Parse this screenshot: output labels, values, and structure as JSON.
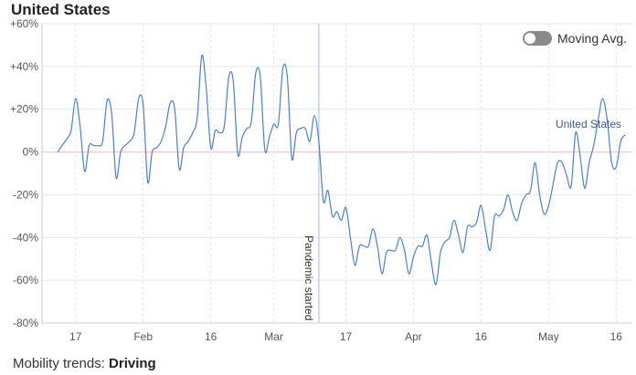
{
  "title": "United States",
  "toggle": {
    "label": "Moving Avg.",
    "on": false
  },
  "footer": {
    "prefix": "Mobility trends: ",
    "mode": "Driving"
  },
  "chart_data": {
    "type": "line",
    "title": "United States",
    "xlabel": "",
    "ylabel": "",
    "ylim": [
      -80,
      60
    ],
    "y_ticks": [
      "+60%",
      "+40%",
      "+20%",
      "0%",
      "-20%",
      "-40%",
      "-60%",
      "-80%"
    ],
    "x_tick_labels": [
      "17",
      "Feb",
      "16",
      "Mar",
      "17",
      "Apr",
      "16",
      "May",
      "16"
    ],
    "annotation": {
      "label": "Pandemic started",
      "date": "2020-03-11"
    },
    "series": [
      {
        "name": "United States",
        "color": "#4a7fd6",
        "start_date": "2020-01-13",
        "values": [
          0,
          3,
          6,
          10,
          25,
          12,
          -9,
          3,
          3,
          3,
          5,
          24,
          18,
          -12,
          0,
          3,
          5,
          9,
          25,
          22,
          -14,
          0,
          2,
          5,
          12,
          23,
          20,
          -8,
          2,
          5,
          9,
          16,
          45,
          30,
          2,
          10,
          9,
          12,
          35,
          33,
          -1,
          7,
          11,
          14,
          37,
          35,
          1,
          7,
          13,
          13,
          39,
          35,
          -3,
          9,
          11,
          11,
          5,
          17,
          5,
          -23,
          -18,
          -30,
          -28,
          -32,
          -26,
          -40,
          -53,
          -44,
          -44,
          -44,
          -36,
          -44,
          -57,
          -47,
          -46,
          -46,
          -40,
          -46,
          -57,
          -49,
          -44,
          -44,
          -39,
          -52,
          -62,
          -47,
          -42,
          -40,
          -32,
          -39,
          -47,
          -35,
          -35,
          -33,
          -25,
          -36,
          -46,
          -30,
          -30,
          -27,
          -20,
          -28,
          -32,
          -24,
          -20,
          -18,
          -5,
          -20,
          -29,
          -25,
          -15,
          -5,
          -5,
          -11,
          -16,
          9,
          -2,
          -17,
          -5,
          3,
          15,
          25,
          15,
          -5,
          -7,
          5,
          8
        ]
      }
    ]
  }
}
